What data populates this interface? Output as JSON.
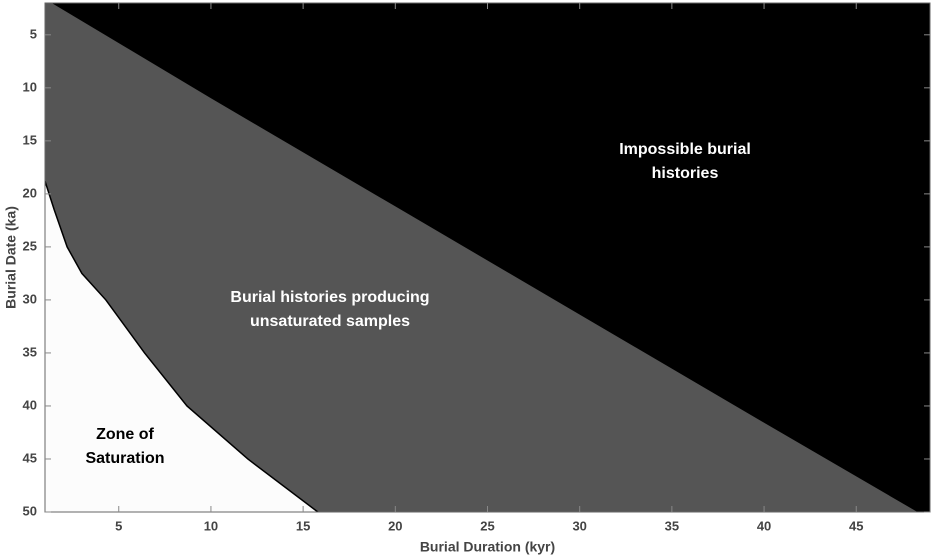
{
  "chart_data": {
    "type": "area",
    "xlabel": "Burial Duration (kyr)",
    "ylabel": "Burial Date (ka)",
    "xlim": [
      1,
      49
    ],
    "ylim": [
      2,
      50
    ],
    "y_reversed": true,
    "xticks": [
      5,
      10,
      15,
      20,
      25,
      30,
      35,
      40,
      45
    ],
    "yticks": [
      5,
      10,
      15,
      20,
      25,
      30,
      35,
      40,
      45,
      50
    ],
    "plot_background": "#000000",
    "series": [
      {
        "color": "#555555",
        "x": [
          1.44,
          10,
          20,
          30,
          40,
          48.4
        ],
        "values": [
          2,
          10.9,
          21.1,
          31.3,
          41.5,
          50
        ]
      },
      {
        "color": "#fcfcfc",
        "x": [
          1,
          1.5,
          2.2,
          3,
          4.3,
          6.4,
          8.7,
          12,
          15.8
        ],
        "values": [
          18.8,
          21.5,
          25,
          27.5,
          30,
          35,
          40,
          45,
          50
        ]
      }
    ],
    "annotations": [
      {
        "lines": [
          "Impossible burial",
          "histories"
        ],
        "color": "#ffffff"
      },
      {
        "lines": [
          "Burial histories producing",
          "unsaturated samples"
        ],
        "color": "#ffffff"
      },
      {
        "lines": [
          "Zone of",
          "Saturation"
        ],
        "color": "#000000"
      }
    ]
  }
}
